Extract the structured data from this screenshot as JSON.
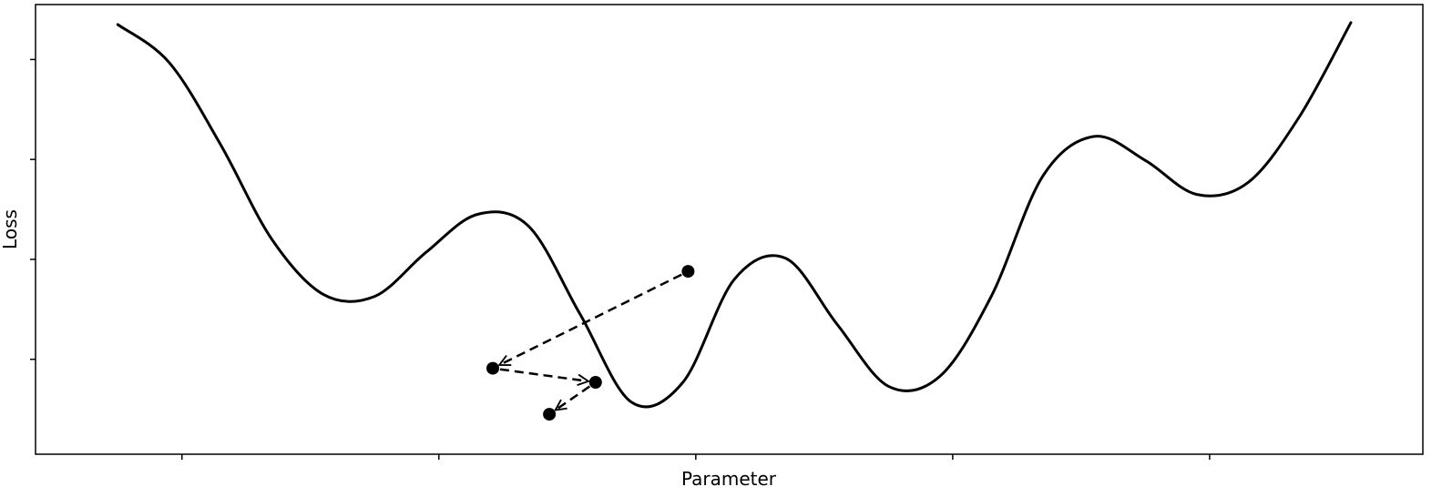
{
  "chart_data": {
    "type": "line",
    "title": "",
    "xlabel": "Parameter",
    "ylabel": "Loss",
    "xlim": [
      -5.6,
      21.4
    ],
    "ylim": [
      -0.2,
      4.3
    ],
    "grid": false,
    "x_ticks": [
      -2.75,
      2.25,
      7.25,
      12.25,
      17.25
    ],
    "y_ticks": [
      0.75,
      1.75,
      2.75,
      3.75
    ],
    "curve": {
      "x": [
        -4.0,
        -3.0,
        -2.0,
        -1.0,
        0.0,
        1.0,
        2.0,
        3.0,
        4.0,
        5.0,
        6.0,
        7.0,
        8.0,
        9.0,
        10.0,
        11.0,
        12.0,
        13.0,
        14.0,
        15.0,
        16.0,
        17.0,
        18.0,
        19.0,
        20.0
      ],
      "y": [
        4.1,
        3.72,
        2.9,
        1.95,
        1.4,
        1.38,
        1.82,
        2.2,
        2.08,
        1.2,
        0.32,
        0.52,
        1.55,
        1.76,
        1.1,
        0.48,
        0.58,
        1.38,
        2.58,
        2.98,
        2.74,
        2.4,
        2.52,
        3.18,
        4.12
      ]
    },
    "points": [
      {
        "x": 7.1,
        "y": 1.63
      },
      {
        "x": 3.3,
        "y": 0.66
      },
      {
        "x": 5.3,
        "y": 0.52
      },
      {
        "x": 4.4,
        "y": 0.2
      }
    ],
    "arrows": [
      {
        "from": 0,
        "to": 1
      },
      {
        "from": 1,
        "to": 2
      },
      {
        "from": 2,
        "to": 3
      }
    ],
    "line_color": "#000000",
    "marker_color": "#000000"
  }
}
